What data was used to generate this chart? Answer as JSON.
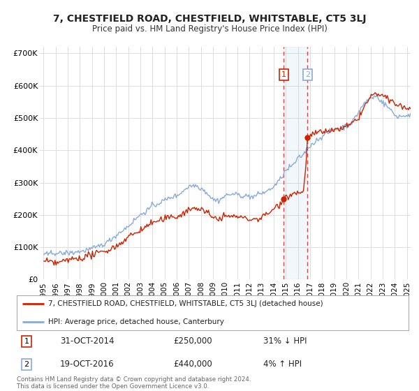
{
  "title": "7, CHESTFIELD ROAD, CHESTFIELD, WHITSTABLE, CT5 3LJ",
  "subtitle": "Price paid vs. HM Land Registry's House Price Index (HPI)",
  "legend_line1": "7, CHESTFIELD ROAD, CHESTFIELD, WHITSTABLE, CT5 3LJ (detached house)",
  "legend_line2": "HPI: Average price, detached house, Canterbury",
  "footer": "Contains HM Land Registry data © Crown copyright and database right 2024.\nThis data is licensed under the Open Government Licence v3.0.",
  "transaction1_date": "31-OCT-2014",
  "transaction1_price": "£250,000",
  "transaction1_hpi": "31% ↓ HPI",
  "transaction2_date": "19-OCT-2016",
  "transaction2_price": "£440,000",
  "transaction2_hpi": "4% ↑ HPI",
  "color_red": "#cc2200",
  "color_blue": "#88aadd",
  "background": "#ffffff",
  "grid_color": "#dddddd",
  "ylim": [
    0,
    720000
  ],
  "yticks": [
    0,
    100000,
    200000,
    300000,
    400000,
    500000,
    600000,
    700000
  ],
  "ytick_labels": [
    "£0",
    "£100K",
    "£200K",
    "£300K",
    "£400K",
    "£500K",
    "£600K",
    "£700K"
  ],
  "transaction1_x": 2014.83,
  "transaction2_x": 2016.8,
  "vline_color": "#dd4444",
  "shade_color": "#aaccee"
}
